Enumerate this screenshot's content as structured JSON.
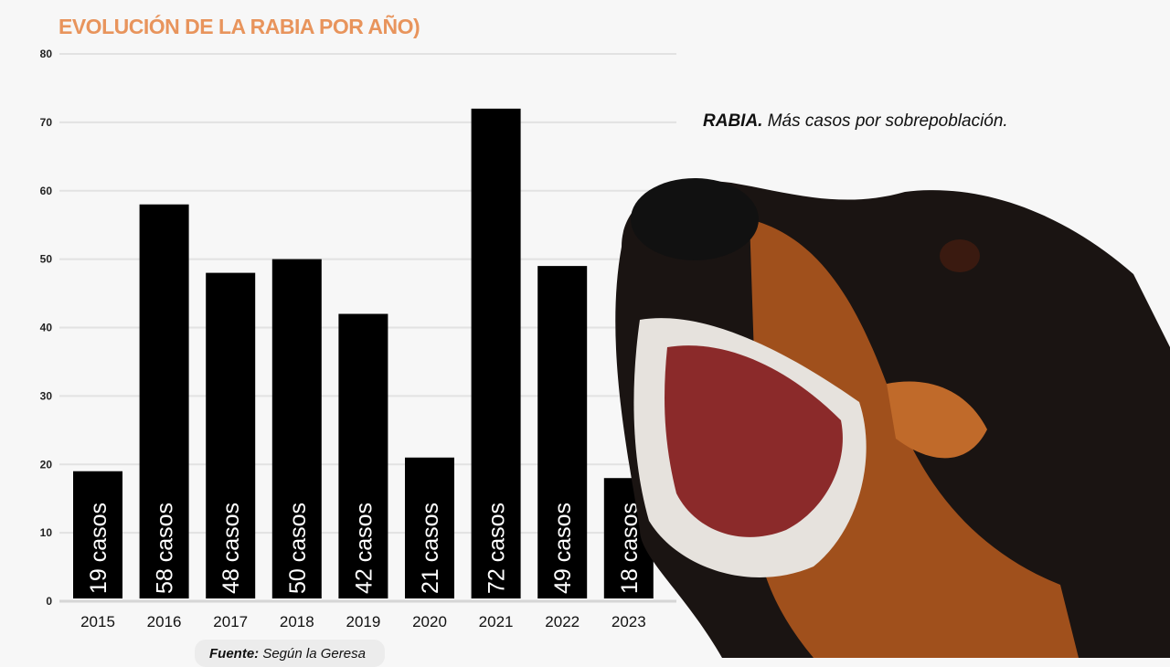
{
  "chart_data": {
    "type": "bar",
    "title": "EVOLUCIÓN DE LA RABIA POR AÑO)",
    "categories": [
      "2015",
      "2016",
      "2017",
      "2018",
      "2019",
      "2020",
      "2021",
      "2022",
      "2023"
    ],
    "values": [
      19,
      58,
      48,
      50,
      42,
      21,
      72,
      49,
      18
    ],
    "data_labels": [
      "19 casos",
      "58 casos",
      "48 casos",
      "50 casos",
      "42 casos",
      "21 casos",
      "72 casos",
      "49 casos",
      "18 casos"
    ],
    "ylim": [
      0,
      80
    ],
    "yticks": [
      0,
      10,
      20,
      30,
      40,
      50,
      60,
      70,
      80
    ],
    "grid": true,
    "bar_color": "#000000",
    "title_color": "#e8945c"
  },
  "caption": {
    "bold": "RABIA.",
    "text": " Más casos por sobrepoblación."
  },
  "source": {
    "label": "Fuente:",
    "text": " Según la Geresa"
  }
}
